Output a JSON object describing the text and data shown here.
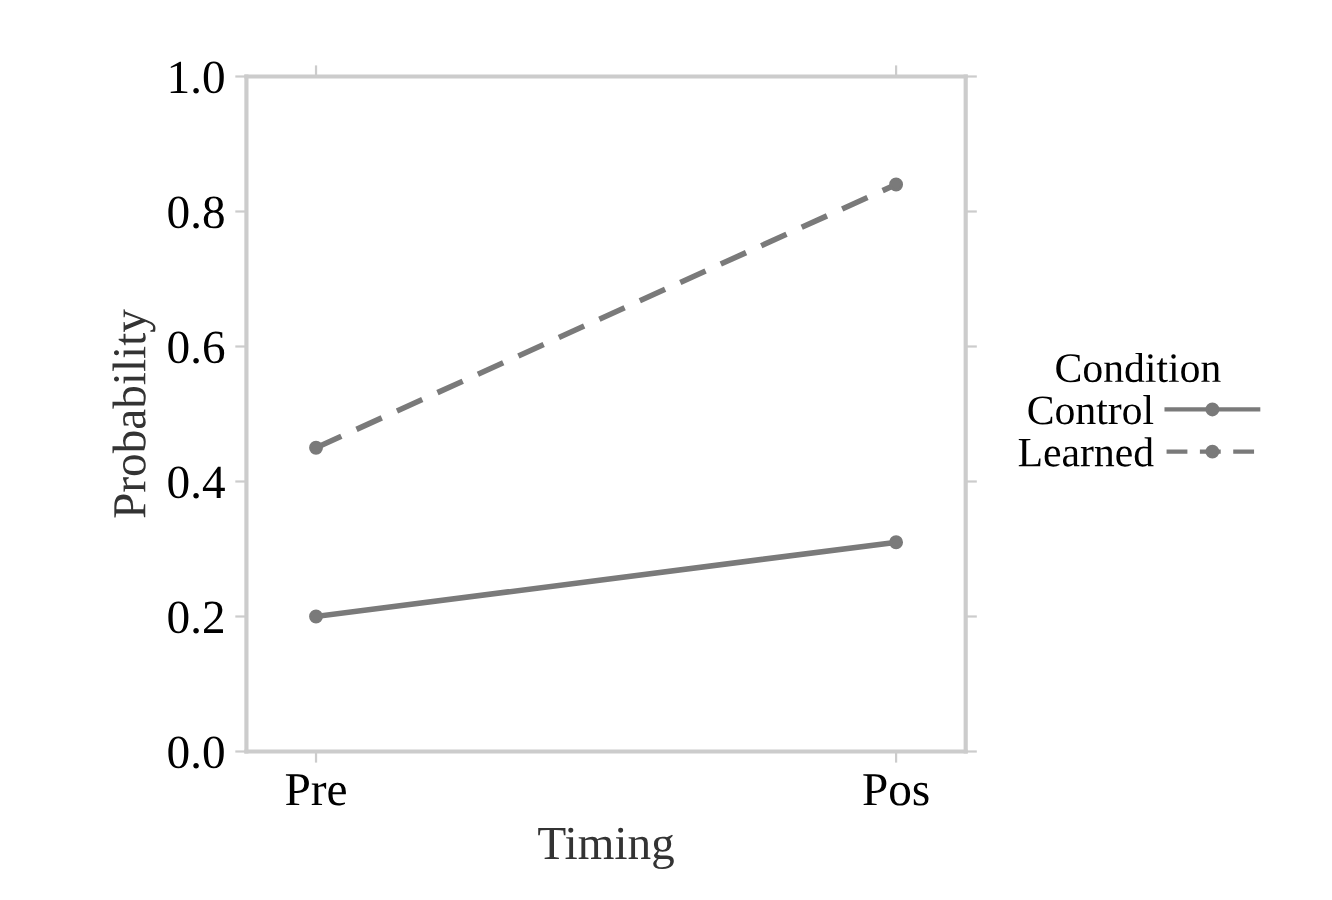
{
  "chart_data": {
    "type": "line",
    "xlabel": "Timing",
    "ylabel": "Probability",
    "legend_title": "Condition",
    "categories": [
      "Pre",
      "Pos"
    ],
    "series": [
      {
        "name": "Control",
        "color": "#7a7a7a",
        "values": [
          0.2,
          0.31
        ],
        "line_style": "solid"
      },
      {
        "name": "Learned",
        "color": "#7a7a7a",
        "values": [
          0.45,
          0.84
        ],
        "line_style": "dashed"
      }
    ],
    "ylim": [
      0,
      1
    ],
    "yticks": [
      {
        "value": 0,
        "label": "0.0"
      },
      0.2,
      0.4,
      0.6,
      0.8,
      {
        "value": 1,
        "label": "1.0"
      }
    ],
    "marker": "circle",
    "legend": "right",
    "grid": false
  }
}
